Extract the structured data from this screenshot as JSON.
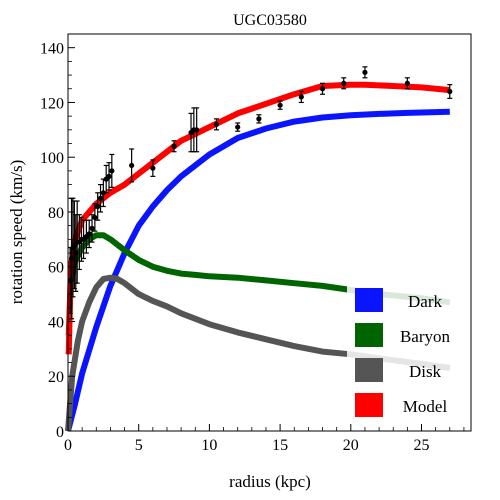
{
  "chart_data": {
    "type": "line",
    "title": "UGC03580",
    "xlabel": "radius (kpc)",
    "ylabel": "rotation speed (km/s)",
    "xlim": [
      0,
      28.5
    ],
    "ylim": [
      0,
      145
    ],
    "xticks": [
      0,
      5,
      10,
      15,
      20,
      25
    ],
    "yticks": [
      0,
      20,
      40,
      60,
      80,
      100,
      120,
      140
    ],
    "xtick_labels": [
      "0",
      "5",
      "10",
      "15",
      "20",
      "25"
    ],
    "ytick_labels": [
      "0",
      "20",
      "40",
      "60",
      "80",
      "100",
      "120",
      "140"
    ],
    "legend_position": "bottom-right",
    "series": [
      {
        "name": "Dark",
        "color": "#0a14ff",
        "x": [
          0,
          0.5,
          1,
          2,
          3,
          4,
          5,
          6,
          7,
          8,
          9,
          10,
          12,
          14,
          16,
          18,
          20,
          22,
          24,
          27
        ],
        "y": [
          0,
          10,
          21,
          38,
          53,
          65,
          75,
          82,
          88,
          93,
          97,
          101,
          107,
          110.5,
          113,
          114.5,
          115.3,
          115.8,
          116.2,
          116.6
        ]
      },
      {
        "name": "Baryon",
        "color": "#006400",
        "x": [
          0.05,
          0.2,
          0.5,
          1,
          1.5,
          2,
          2.5,
          3,
          4,
          5,
          6,
          7,
          8,
          9,
          10,
          12,
          14,
          16,
          18,
          20,
          22,
          25,
          27
        ],
        "y": [
          35,
          55,
          62,
          67,
          70,
          71.5,
          71.5,
          70,
          66,
          62.5,
          60,
          58.5,
          57.5,
          57,
          56.5,
          56,
          55,
          54,
          53,
          51.5,
          50,
          48.5,
          47
        ]
      },
      {
        "name": "Disk",
        "color": "#555555",
        "x": [
          0,
          0.3,
          0.7,
          1,
          1.5,
          2,
          2.5,
          3,
          3.5,
          4,
          5,
          6,
          7,
          8,
          10,
          12,
          14,
          16,
          18,
          20,
          22,
          25,
          27
        ],
        "y": [
          0,
          20,
          33,
          40,
          47,
          52.5,
          55.5,
          56,
          55.5,
          54,
          50,
          47.5,
          45.5,
          43,
          39,
          36,
          33.5,
          31,
          29,
          28,
          26.5,
          24.5,
          23
        ]
      },
      {
        "name": "Model",
        "color": "#ff0000",
        "x": [
          0.05,
          0.2,
          0.5,
          1,
          1.5,
          2,
          3,
          4,
          5,
          6,
          7,
          8,
          9,
          10,
          12,
          14,
          16,
          18,
          20,
          21,
          23,
          25,
          27
        ],
        "y": [
          28,
          60,
          70,
          77,
          80,
          83,
          87,
          90,
          94,
          98,
          102,
          106,
          108.5,
          111,
          116,
          119.5,
          123,
          126,
          126.5,
          126.5,
          126,
          125.5,
          124.5
        ]
      }
    ],
    "observations": {
      "name": "data",
      "color": "#000000",
      "x": [
        0.15,
        0.25,
        0.35,
        0.45,
        0.55,
        0.65,
        0.8,
        0.95,
        1.1,
        1.3,
        1.5,
        1.7,
        1.9,
        2.1,
        2.3,
        2.5,
        2.7,
        2.9,
        3.1,
        4.5,
        6,
        7.5,
        8.7,
        8.9,
        9.1,
        10.5,
        12,
        13.5,
        15,
        16.5,
        18,
        19.5,
        21,
        24,
        27
      ],
      "y": [
        55,
        63,
        67,
        68,
        65,
        69,
        69,
        70,
        70,
        71,
        72,
        74,
        78,
        82,
        85,
        87,
        92,
        93,
        95,
        97,
        96,
        104,
        109,
        110,
        110,
        112,
        111,
        114,
        119,
        122,
        125,
        127,
        131,
        127,
        124
      ],
      "yerr": [
        12,
        22,
        18,
        16,
        14,
        15,
        10,
        8,
        7,
        6,
        5,
        5,
        5,
        5,
        5,
        5,
        5,
        5,
        6,
        6,
        3,
        2,
        7,
        8,
        8,
        2,
        1.5,
        1.5,
        1.5,
        2,
        2,
        2,
        2,
        2,
        2.5
      ]
    }
  }
}
